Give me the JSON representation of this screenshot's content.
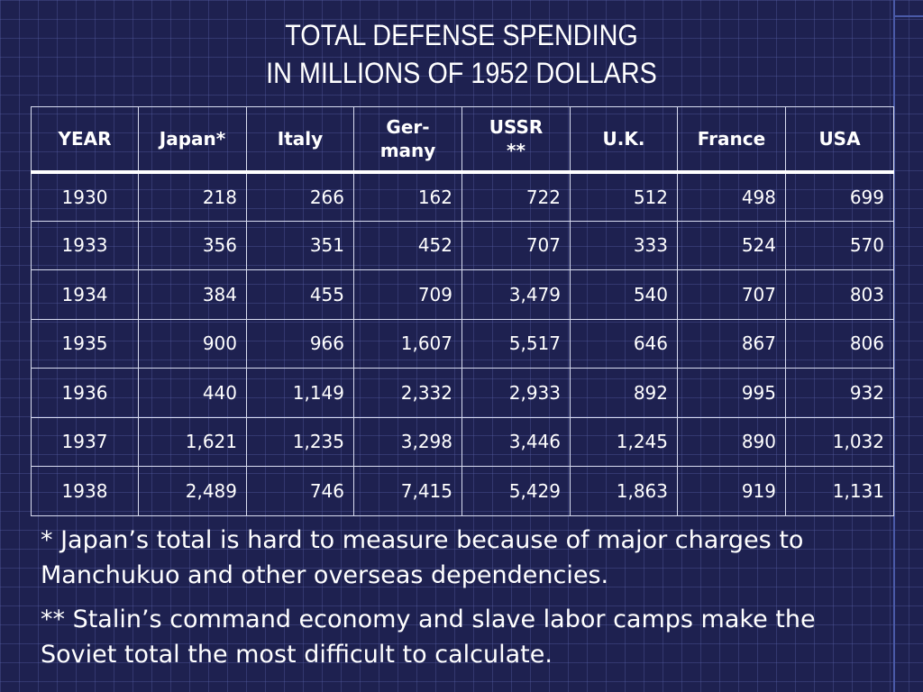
{
  "title": {
    "line1": "TOTAL DEFENSE SPENDING",
    "line2": "IN MILLIONS OF 1952 DOLLARS"
  },
  "table": {
    "headers": [
      "YEAR",
      "Japan*",
      "Italy",
      "Ger-\nmany",
      "USSR\n**",
      "U.K.",
      "France",
      "USA"
    ],
    "rows": [
      [
        "1930",
        "218",
        "266",
        "162",
        "722",
        "512",
        "498",
        "699"
      ],
      [
        "1933",
        "356",
        "351",
        "452",
        "707",
        "333",
        "524",
        "570"
      ],
      [
        "1934",
        "384",
        "455",
        "709",
        "3,479",
        "540",
        "707",
        "803"
      ],
      [
        "1935",
        "900",
        "966",
        "1,607",
        "5,517",
        "646",
        "867",
        "806"
      ],
      [
        "1936",
        "440",
        "1,149",
        "2,332",
        "2,933",
        "892",
        "995",
        "932"
      ],
      [
        "1937",
        "1,621",
        "1,235",
        "3,298",
        "3,446",
        "1,245",
        "890",
        "1,032"
      ],
      [
        "1938",
        "2,489",
        "746",
        "7,415",
        "5,429",
        "1,863",
        "919",
        "1,131"
      ]
    ]
  },
  "notes": {
    "japan": "* Japan’s total is hard to measure because of major charges to Manchukuo and other overseas dependencies.",
    "ussr": "** Stalin’s command economy and slave labor camps make the Soviet total the most difficult to calculate."
  },
  "colors": {
    "background": "#1e2150",
    "grid": "#5a64aa",
    "text": "#ffffff"
  }
}
